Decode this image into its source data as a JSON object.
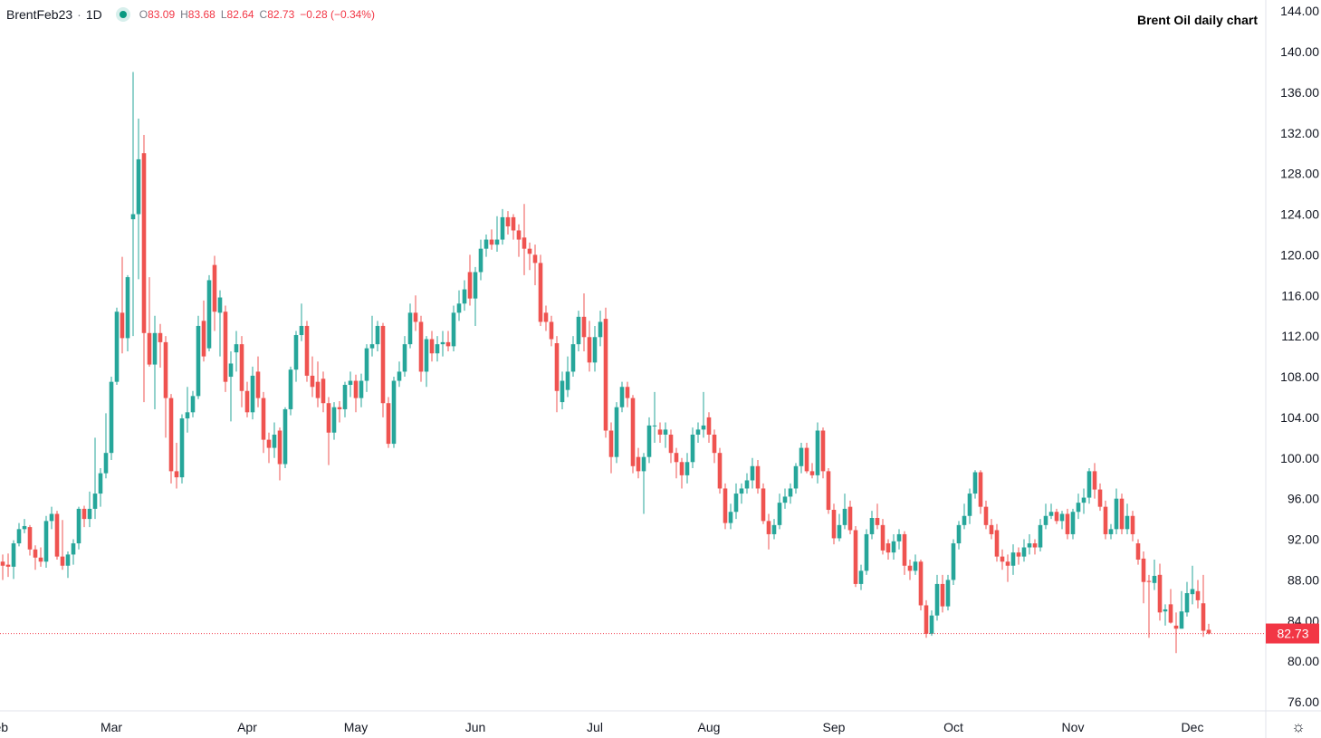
{
  "header": {
    "symbol": "BrentFeb23",
    "separator": "·",
    "interval": "1D",
    "open_label": "O",
    "open": "83.09",
    "high_label": "H",
    "high": "83.68",
    "low_label": "L",
    "low": "82.64",
    "close_label": "C",
    "close": "82.73",
    "change": "−0.28 (−0.34%)"
  },
  "settings_icon": "gear-icon",
  "colors": {
    "up": "#26a69a",
    "down": "#ef5350",
    "last_price": "#f23645"
  },
  "chart_data": {
    "type": "candlestick",
    "title": "Brent Oil daily chart",
    "last_price_label": "82.73",
    "ylim": [
      74,
      145
    ],
    "yticks": [
      "76.00",
      "80.00",
      "84.00",
      "88.00",
      "92.00",
      "96.00",
      "100.00",
      "104.00",
      "108.00",
      "112.00",
      "116.00",
      "120.00",
      "124.00",
      "128.00",
      "132.00",
      "136.00",
      "140.00",
      "144.00"
    ],
    "xticks": [
      {
        "label": "Feb",
        "index": -1
      },
      {
        "label": "Mar",
        "index": 20
      },
      {
        "label": "Apr",
        "index": 45
      },
      {
        "label": "May",
        "index": 65
      },
      {
        "label": "Jun",
        "index": 87
      },
      {
        "label": "Jul",
        "index": 109
      },
      {
        "label": "Aug",
        "index": 130
      },
      {
        "label": "Sep",
        "index": 153
      },
      {
        "label": "Oct",
        "index": 175
      },
      {
        "label": "Nov",
        "index": 197
      },
      {
        "label": "Dec",
        "index": 219
      }
    ],
    "ohlc_fields": [
      "open",
      "high",
      "low",
      "close"
    ],
    "candles": [
      [
        89.8,
        90.5,
        88.0,
        89.4
      ],
      [
        89.5,
        90.6,
        88.3,
        89.3
      ],
      [
        89.3,
        91.9,
        88.1,
        91.6
      ],
      [
        91.6,
        93.6,
        91.3,
        93.0
      ],
      [
        93.0,
        94.0,
        92.6,
        93.3
      ],
      [
        93.2,
        93.4,
        90.4,
        91.0
      ],
      [
        91.0,
        91.4,
        89.0,
        90.2
      ],
      [
        90.2,
        91.2,
        89.3,
        89.8
      ],
      [
        89.8,
        94.3,
        89.2,
        93.8
      ],
      [
        93.8,
        95.2,
        93.0,
        94.5
      ],
      [
        94.5,
        94.8,
        90.0,
        90.3
      ],
      [
        90.3,
        93.9,
        89.0,
        89.4
      ],
      [
        89.4,
        90.8,
        88.2,
        90.5
      ],
      [
        90.5,
        92.0,
        89.5,
        91.6
      ],
      [
        91.6,
        95.2,
        91.0,
        95.0
      ],
      [
        95.0,
        95.3,
        93.2,
        94.0
      ],
      [
        94.0,
        96.7,
        93.2,
        95.0
      ],
      [
        95.0,
        102.0,
        94.0,
        96.5
      ],
      [
        96.5,
        99.0,
        95.2,
        98.5
      ],
      [
        98.5,
        104.4,
        98.0,
        100.5
      ],
      [
        100.5,
        108.0,
        99.8,
        107.5
      ],
      [
        107.5,
        114.8,
        107.2,
        114.4
      ],
      [
        114.3,
        119.8,
        110.3,
        111.8
      ],
      [
        111.8,
        118.0,
        110.5,
        117.8
      ],
      [
        123.5,
        138.0,
        112.0,
        124.0
      ],
      [
        124.0,
        133.4,
        117.6,
        129.4
      ],
      [
        130.0,
        131.8,
        105.5,
        112.3
      ],
      [
        112.3,
        117.8,
        109.0,
        109.2
      ],
      [
        109.2,
        114.0,
        104.8,
        112.3
      ],
      [
        112.3,
        113.2,
        108.9,
        111.4
      ],
      [
        111.4,
        112.0,
        102.0,
        105.9
      ],
      [
        105.9,
        106.3,
        97.5,
        98.7
      ],
      [
        98.7,
        101.5,
        97.0,
        98.1
      ],
      [
        98.1,
        104.3,
        97.5,
        103.9
      ],
      [
        103.9,
        107.0,
        102.5,
        104.5
      ],
      [
        104.5,
        106.6,
        104.0,
        106.1
      ],
      [
        106.1,
        114.0,
        105.8,
        113.0
      ],
      [
        113.5,
        115.5,
        109.5,
        110.0
      ],
      [
        110.8,
        118.0,
        110.5,
        117.5
      ],
      [
        119.0,
        119.9,
        112.5,
        114.4
      ],
      [
        114.3,
        116.5,
        110.0,
        115.8
      ],
      [
        114.4,
        115.0,
        106.5,
        107.5
      ],
      [
        108.0,
        110.5,
        103.6,
        109.3
      ],
      [
        110.4,
        112.5,
        108.5,
        111.2
      ],
      [
        111.2,
        112.0,
        105.0,
        106.6
      ],
      [
        106.6,
        107.5,
        104.0,
        104.5
      ],
      [
        104.5,
        109.0,
        103.8,
        108.1
      ],
      [
        108.5,
        110.0,
        105.0,
        105.9
      ],
      [
        105.9,
        106.5,
        100.5,
        101.8
      ],
      [
        101.8,
        102.5,
        99.5,
        101.0
      ],
      [
        101.0,
        103.5,
        100.0,
        102.3
      ],
      [
        102.7,
        103.0,
        97.8,
        99.4
      ],
      [
        99.4,
        105.0,
        99.0,
        104.8
      ],
      [
        104.8,
        109.0,
        104.2,
        108.7
      ],
      [
        108.7,
        112.5,
        107.5,
        112.1
      ],
      [
        112.1,
        115.2,
        111.5,
        113.0
      ],
      [
        113.0,
        113.5,
        107.5,
        108.1
      ],
      [
        108.1,
        110.0,
        106.0,
        107.0
      ],
      [
        107.5,
        109.5,
        105.0,
        105.9
      ],
      [
        107.8,
        108.5,
        104.5,
        105.4
      ],
      [
        105.4,
        106.0,
        99.3,
        102.5
      ],
      [
        102.5,
        105.5,
        101.8,
        105.0
      ],
      [
        105.0,
        105.6,
        103.5,
        104.8
      ],
      [
        104.8,
        107.5,
        104.0,
        107.2
      ],
      [
        107.2,
        108.5,
        106.0,
        107.6
      ],
      [
        107.6,
        108.2,
        104.5,
        105.9
      ],
      [
        105.9,
        108.3,
        105.0,
        107.6
      ],
      [
        107.6,
        111.2,
        106.5,
        110.8
      ],
      [
        110.8,
        114.0,
        110.0,
        111.2
      ],
      [
        111.2,
        113.5,
        110.5,
        113.0
      ],
      [
        113.0,
        113.3,
        104.0,
        105.4
      ],
      [
        105.4,
        106.0,
        101.0,
        101.4
      ],
      [
        101.4,
        108.0,
        101.0,
        107.6
      ],
      [
        107.6,
        109.5,
        107.0,
        108.5
      ],
      [
        108.5,
        112.0,
        108.0,
        111.2
      ],
      [
        111.2,
        115.2,
        110.8,
        114.3
      ],
      [
        114.3,
        116.0,
        112.5,
        113.4
      ],
      [
        113.4,
        114.0,
        107.5,
        108.5
      ],
      [
        108.5,
        112.0,
        107.0,
        111.7
      ],
      [
        111.7,
        112.5,
        109.5,
        110.3
      ],
      [
        110.3,
        112.0,
        109.5,
        111.2
      ],
      [
        111.2,
        112.5,
        110.0,
        111.4
      ],
      [
        111.4,
        112.5,
        110.5,
        111.0
      ],
      [
        111.0,
        115.0,
        110.5,
        114.3
      ],
      [
        114.3,
        116.5,
        113.5,
        115.2
      ],
      [
        115.2,
        117.5,
        114.5,
        116.6
      ],
      [
        118.3,
        120.0,
        115.0,
        115.7
      ],
      [
        115.7,
        118.8,
        113.0,
        118.3
      ],
      [
        118.3,
        121.5,
        117.5,
        120.6
      ],
      [
        120.6,
        122.0,
        119.8,
        121.5
      ],
      [
        121.5,
        122.5,
        120.5,
        121.0
      ],
      [
        121.0,
        123.8,
        120.3,
        121.5
      ],
      [
        121.5,
        124.5,
        121.0,
        123.7
      ],
      [
        123.7,
        124.3,
        122.0,
        122.8
      ],
      [
        123.7,
        124.0,
        121.5,
        122.4
      ],
      [
        122.4,
        123.0,
        119.8,
        121.5
      ],
      [
        121.7,
        125.0,
        118.0,
        120.6
      ],
      [
        120.6,
        121.2,
        118.5,
        120.1
      ],
      [
        120.0,
        121.0,
        117.0,
        119.2
      ],
      [
        119.2,
        120.0,
        113.0,
        113.4
      ],
      [
        114.3,
        115.0,
        112.5,
        113.4
      ],
      [
        113.4,
        114.0,
        111.0,
        111.7
      ],
      [
        111.3,
        112.0,
        104.5,
        106.6
      ],
      [
        105.5,
        108.5,
        104.8,
        107.6
      ],
      [
        106.7,
        110.0,
        106.0,
        108.5
      ],
      [
        108.5,
        112.0,
        108.0,
        111.2
      ],
      [
        111.2,
        114.5,
        110.5,
        113.9
      ],
      [
        113.9,
        116.2,
        110.5,
        111.9
      ],
      [
        111.9,
        113.5,
        108.5,
        109.4
      ],
      [
        109.4,
        113.0,
        108.5,
        111.9
      ],
      [
        111.9,
        114.5,
        111.0,
        113.4
      ],
      [
        113.7,
        114.8,
        102.0,
        102.7
      ],
      [
        102.7,
        103.5,
        98.5,
        100.1
      ],
      [
        100.1,
        105.5,
        99.5,
        105.0
      ],
      [
        105.0,
        107.5,
        104.5,
        107.0
      ],
      [
        107.0,
        107.5,
        105.0,
        105.9
      ],
      [
        105.9,
        106.2,
        98.5,
        99.2
      ],
      [
        100.1,
        101.0,
        98.0,
        98.7
      ],
      [
        98.7,
        100.5,
        94.5,
        100.1
      ],
      [
        100.1,
        104.0,
        99.5,
        103.2
      ],
      [
        103.2,
        106.5,
        101.5,
        103.2
      ],
      [
        102.8,
        103.5,
        101.5,
        102.3
      ],
      [
        102.3,
        103.5,
        101.0,
        102.8
      ],
      [
        102.3,
        102.8,
        99.5,
        100.5
      ],
      [
        100.5,
        101.0,
        98.0,
        99.6
      ],
      [
        99.6,
        100.0,
        97.0,
        98.3
      ],
      [
        98.3,
        100.5,
        97.5,
        99.6
      ],
      [
        99.6,
        103.0,
        99.0,
        102.3
      ],
      [
        102.3,
        103.5,
        101.5,
        102.8
      ],
      [
        102.8,
        106.5,
        102.0,
        103.2
      ],
      [
        104.0,
        104.5,
        101.5,
        102.3
      ],
      [
        102.3,
        102.8,
        99.5,
        100.5
      ],
      [
        100.5,
        101.0,
        96.5,
        97.0
      ],
      [
        97.0,
        97.5,
        93.0,
        93.6
      ],
      [
        93.6,
        95.5,
        93.0,
        94.7
      ],
      [
        94.7,
        97.5,
        94.0,
        96.5
      ],
      [
        96.5,
        97.5,
        95.5,
        97.0
      ],
      [
        97.0,
        98.5,
        96.5,
        97.8
      ],
      [
        97.8,
        100.0,
        97.0,
        99.2
      ],
      [
        99.2,
        99.8,
        96.5,
        97.0
      ],
      [
        97.0,
        97.5,
        93.5,
        93.8
      ],
      [
        93.8,
        94.5,
        91.0,
        92.5
      ],
      [
        92.5,
        94.0,
        92.0,
        93.4
      ],
      [
        93.4,
        96.5,
        93.0,
        95.6
      ],
      [
        95.6,
        97.0,
        95.0,
        96.2
      ],
      [
        96.2,
        97.5,
        95.5,
        97.0
      ],
      [
        97.0,
        99.5,
        96.5,
        99.2
      ],
      [
        99.2,
        101.5,
        98.5,
        101.0
      ],
      [
        101.0,
        101.5,
        98.5,
        98.7
      ],
      [
        98.7,
        99.5,
        98.0,
        98.3
      ],
      [
        98.3,
        103.5,
        97.5,
        102.7
      ],
      [
        102.7,
        103.0,
        98.0,
        98.7
      ],
      [
        98.7,
        99.0,
        94.5,
        94.9
      ],
      [
        94.9,
        95.5,
        91.5,
        92.1
      ],
      [
        92.1,
        94.5,
        91.8,
        93.4
      ],
      [
        93.4,
        96.5,
        93.0,
        95.0
      ],
      [
        95.2,
        95.8,
        92.5,
        92.9
      ],
      [
        92.9,
        93.3,
        87.3,
        87.6
      ],
      [
        87.6,
        89.5,
        87.0,
        88.9
      ],
      [
        88.9,
        93.0,
        88.5,
        92.5
      ],
      [
        92.5,
        94.8,
        92.0,
        94.1
      ],
      [
        94.1,
        95.5,
        93.0,
        93.4
      ],
      [
        93.4,
        94.0,
        90.5,
        90.9
      ],
      [
        91.6,
        92.0,
        90.0,
        90.7
      ],
      [
        90.7,
        92.5,
        90.0,
        91.8
      ],
      [
        91.8,
        93.0,
        91.0,
        92.5
      ],
      [
        92.5,
        92.8,
        88.5,
        89.4
      ],
      [
        89.4,
        90.0,
        88.0,
        88.9
      ],
      [
        88.9,
        90.5,
        88.5,
        89.8
      ],
      [
        89.8,
        90.0,
        85.0,
        85.5
      ],
      [
        85.5,
        86.0,
        82.3,
        82.7
      ],
      [
        82.7,
        85.0,
        82.5,
        84.5
      ],
      [
        84.5,
        88.5,
        84.0,
        87.6
      ],
      [
        87.6,
        88.5,
        84.8,
        85.4
      ],
      [
        85.4,
        88.5,
        85.0,
        88.0
      ],
      [
        88.0,
        92.0,
        87.5,
        91.6
      ],
      [
        91.6,
        93.8,
        91.0,
        93.4
      ],
      [
        93.4,
        95.5,
        93.0,
        94.3
      ],
      [
        94.3,
        97.0,
        93.5,
        96.5
      ],
      [
        96.5,
        98.8,
        96.0,
        98.6
      ],
      [
        98.6,
        98.8,
        94.5,
        95.2
      ],
      [
        95.2,
        95.8,
        93.0,
        93.4
      ],
      [
        93.4,
        94.0,
        92.0,
        92.5
      ],
      [
        92.9,
        93.5,
        89.8,
        90.3
      ],
      [
        90.3,
        91.0,
        89.0,
        89.8
      ],
      [
        89.8,
        90.5,
        87.8,
        89.4
      ],
      [
        89.4,
        91.5,
        88.5,
        90.7
      ],
      [
        90.7,
        91.2,
        89.5,
        90.3
      ],
      [
        90.3,
        92.0,
        89.8,
        91.2
      ],
      [
        91.2,
        92.5,
        90.5,
        91.6
      ],
      [
        91.6,
        92.0,
        90.5,
        91.2
      ],
      [
        91.2,
        94.0,
        90.8,
        93.4
      ],
      [
        93.4,
        95.5,
        93.0,
        94.3
      ],
      [
        94.3,
        95.5,
        94.0,
        94.7
      ],
      [
        94.7,
        95.0,
        93.5,
        93.8
      ],
      [
        93.8,
        94.8,
        93.0,
        94.5
      ],
      [
        94.5,
        95.0,
        92.0,
        92.5
      ],
      [
        92.5,
        95.0,
        92.0,
        94.7
      ],
      [
        94.7,
        96.5,
        94.0,
        95.6
      ],
      [
        95.6,
        97.0,
        94.5,
        96.1
      ],
      [
        96.1,
        99.0,
        95.5,
        98.7
      ],
      [
        98.7,
        99.5,
        96.0,
        96.9
      ],
      [
        96.9,
        97.5,
        94.8,
        95.2
      ],
      [
        95.2,
        95.8,
        92.0,
        92.5
      ],
      [
        92.5,
        93.5,
        92.0,
        93.0
      ],
      [
        93.0,
        97.0,
        92.5,
        96.0
      ],
      [
        96.0,
        96.5,
        92.5,
        93.0
      ],
      [
        93.0,
        95.5,
        92.5,
        94.3
      ],
      [
        94.3,
        94.8,
        91.8,
        92.5
      ],
      [
        91.6,
        92.0,
        89.5,
        90.0
      ],
      [
        90.1,
        90.8,
        85.7,
        87.8
      ],
      [
        87.9,
        88.5,
        82.3,
        87.8
      ],
      [
        87.7,
        90.0,
        87.0,
        88.4
      ],
      [
        88.5,
        89.6,
        84.0,
        84.8
      ],
      [
        84.9,
        85.6,
        83.5,
        85.1
      ],
      [
        85.6,
        87.1,
        83.7,
        83.8
      ],
      [
        83.5,
        84.8,
        80.8,
        83.2
      ],
      [
        83.2,
        86.9,
        83.2,
        84.9
      ],
      [
        84.8,
        87.8,
        84.4,
        86.7
      ],
      [
        86.6,
        89.4,
        85.6,
        87.1
      ],
      [
        86.9,
        88.0,
        85.2,
        86.0
      ],
      [
        85.7,
        88.5,
        82.4,
        83.0
      ],
      [
        83.09,
        83.68,
        82.64,
        82.73
      ]
    ]
  }
}
